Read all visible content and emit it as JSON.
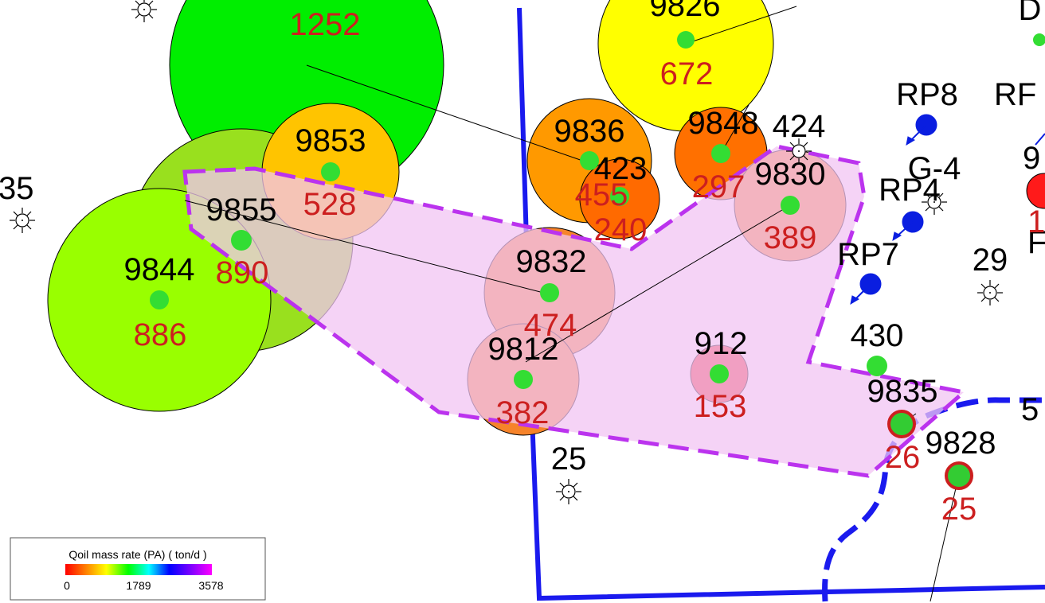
{
  "legend": {
    "title": "Qoil mass rate (PA) ( ton/d )",
    "min_label": "0",
    "mid_label": "1789",
    "max_label": "3578",
    "gradient_colors": [
      "#ff0000",
      "#ff8000",
      "#ffff00",
      "#00ff00",
      "#00ffff",
      "#0000ff",
      "#8000ff",
      "#ff00ff"
    ]
  },
  "colors": {
    "boundary": "#1a1aee",
    "polygon_outline": "#bb33ee",
    "polygon_fill": "#f1c4f3",
    "well_dot": "#33dd33",
    "injector": "#0a1ee0",
    "id_text": "#000000",
    "rate_text": "#cc1f1f"
  },
  "wells": [
    {
      "id": "",
      "rate": "1252",
      "color": "#00ee00"
    },
    {
      "id": "9826",
      "rate": "672",
      "color": "#ffff00"
    },
    {
      "id": "9853",
      "rate": "528",
      "color": "#ffc400"
    },
    {
      "id": "9836",
      "rate": "455",
      "color": "#ff9900"
    },
    {
      "id": "423",
      "rate": "240",
      "color": "#ff6a00"
    },
    {
      "id": "9848",
      "rate": "297",
      "color": "#ff7000"
    },
    {
      "id": "9830",
      "rate": "389",
      "color": "#f6832a"
    },
    {
      "id": "9855",
      "rate": "890",
      "color": "#99e01e"
    },
    {
      "id": "9844",
      "rate": "886",
      "color": "#99ff00"
    },
    {
      "id": "9832",
      "rate": "474",
      "color": "#f6832a"
    },
    {
      "id": "9812",
      "rate": "382",
      "color": "#f6832a"
    },
    {
      "id": "912",
      "rate": "153",
      "color": "#ee3030"
    },
    {
      "id": "9835",
      "rate": "26",
      "color": "#33cc33"
    },
    {
      "id": "9828",
      "rate": "25",
      "color": "#33cc33"
    },
    {
      "id": "",
      "rate": "1",
      "color": "#ff1a1a"
    }
  ],
  "plain_wells": [
    {
      "id": "430"
    },
    {
      "id": "424"
    },
    {
      "id": "D"
    }
  ],
  "injectors": [
    {
      "id": "RP8"
    },
    {
      "id": "RP4"
    },
    {
      "id": "RP7"
    },
    {
      "id": "RF"
    }
  ],
  "symbol_wells": [
    {
      "id": "35",
      "icon": "oil-well-symbol-icon"
    },
    {
      "id": "25",
      "icon": "oil-well-symbol-icon"
    },
    {
      "id": "29",
      "icon": "oil-well-symbol-icon"
    },
    {
      "id": "G-4",
      "icon": "oil-well-symbol-icon"
    },
    {
      "id": "",
      "icon": "oil-well-symbol-icon"
    }
  ],
  "edge_labels": [
    {
      "text": "9"
    },
    {
      "text": "F"
    },
    {
      "text": "5"
    }
  ]
}
